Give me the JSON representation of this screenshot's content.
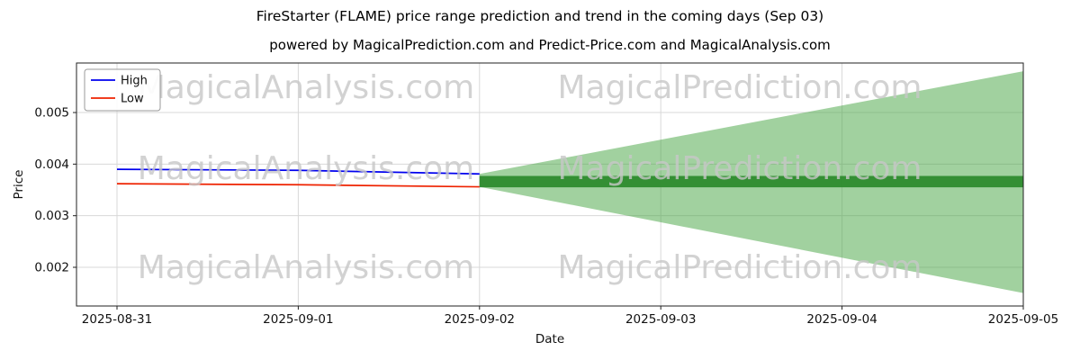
{
  "chart_data": {
    "type": "line",
    "title": "FireStarter (FLAME) price range prediction and trend in the coming days (Sep 03)",
    "subtitle": "powered by MagicalPrediction.com and Predict-Price.com and MagicalAnalysis.com",
    "xlabel": "Date",
    "ylabel": "Price",
    "categories": [
      "2025-08-31",
      "2025-09-01",
      "2025-09-02",
      "2025-09-03",
      "2025-09-04",
      "2025-09-05"
    ],
    "y_ticks": [
      "0.002",
      "0.003",
      "0.004",
      "0.005"
    ],
    "y_tick_values": [
      0.002,
      0.003,
      0.004,
      0.005
    ],
    "ylim": [
      0.00125,
      0.00596
    ],
    "grid": true,
    "legend_position": "upper-left",
    "series": [
      {
        "name": "High",
        "color": "#0000ee",
        "x_index": [
          0,
          1,
          2
        ],
        "values": [
          0.0039,
          0.00388,
          0.00381
        ]
      },
      {
        "name": "Low",
        "color": "#ee2200",
        "x_index": [
          0,
          1,
          2
        ],
        "values": [
          0.00362,
          0.0036,
          0.00356
        ]
      }
    ],
    "forecast_cone": {
      "label": "prediction-range",
      "color": "#44a340",
      "opacity": 0.5,
      "x_index": [
        2,
        5
      ],
      "top": [
        0.00381,
        0.0058
      ],
      "bottom": [
        0.00356,
        0.0015
      ]
    },
    "trend_band": {
      "label": "trend-band",
      "color": "#2e8b2e",
      "opacity": 0.95,
      "x_index": [
        2,
        5
      ],
      "top": [
        0.00377,
        0.00377
      ],
      "bottom": [
        0.00355,
        0.00355
      ]
    },
    "watermarks": {
      "texts": [
        "MagicalAnalysis.com",
        "MagicalPrediction.com"
      ],
      "color": "#c7c7c7",
      "opacity": 0.8
    }
  }
}
